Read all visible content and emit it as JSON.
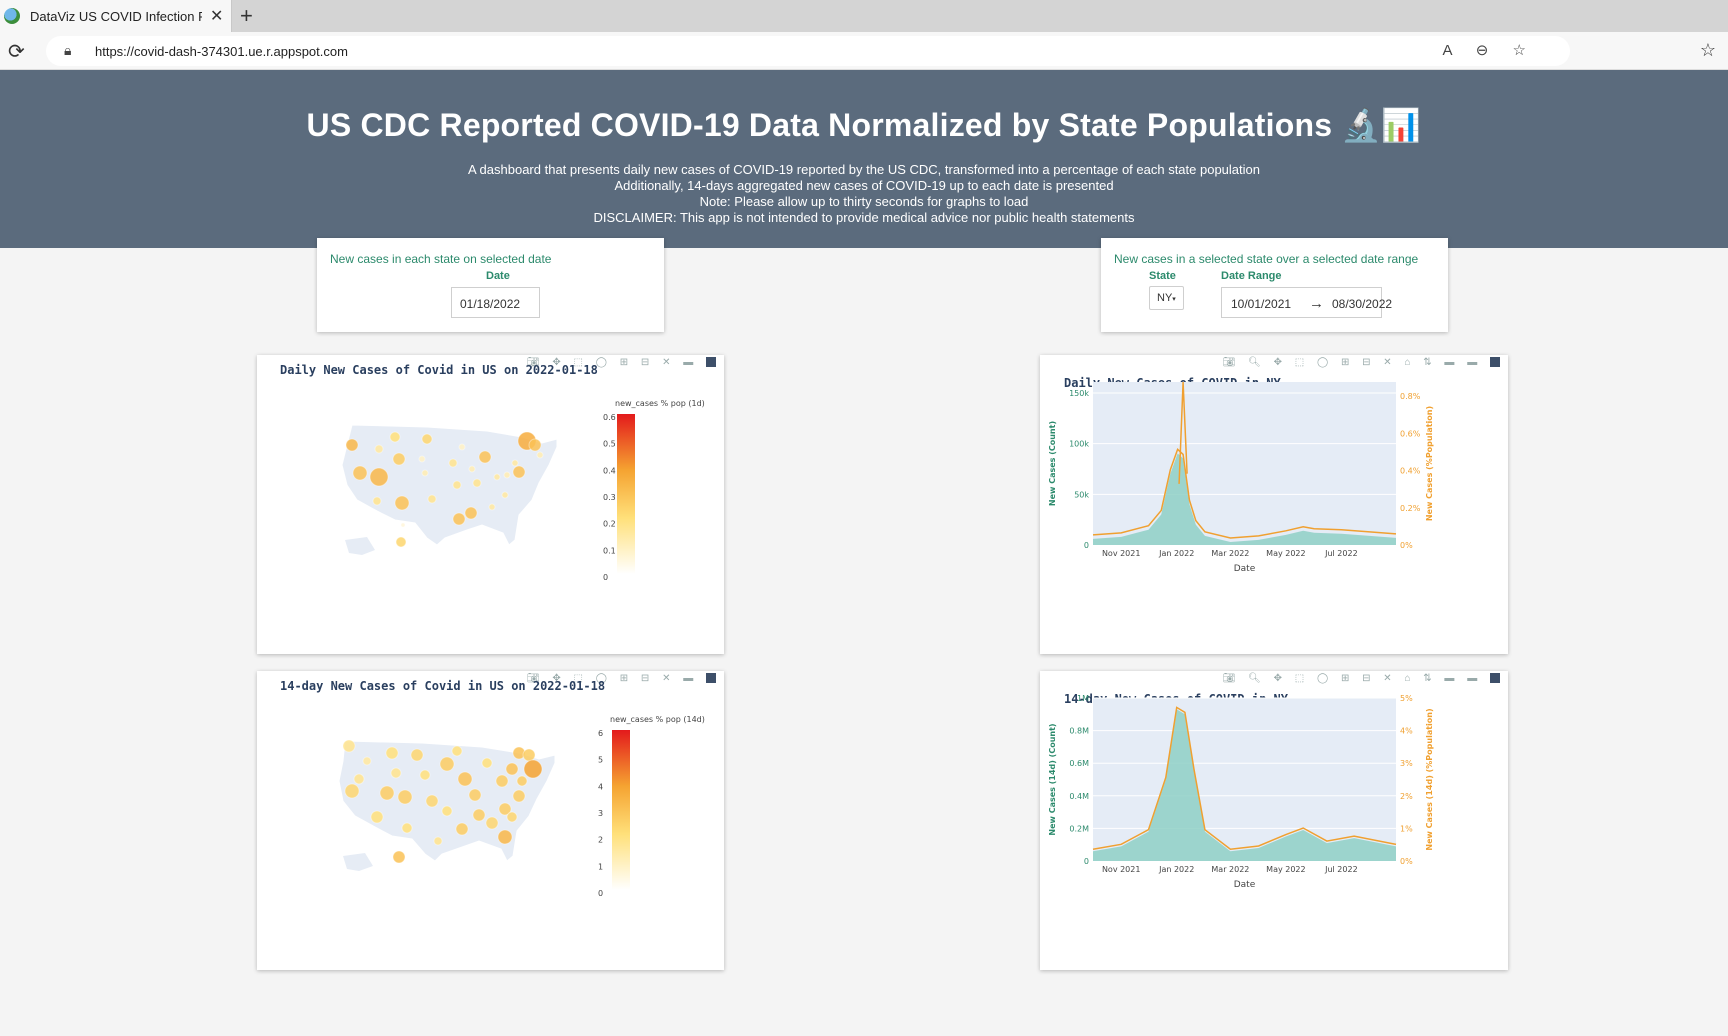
{
  "browser": {
    "tab_title": "DataViz US COVID Infection Rate",
    "url": "https://covid-dash-374301.ue.r.appspot.com",
    "tab_close": "✕",
    "new_tab": "+"
  },
  "header": {
    "title": "US CDC Reported COVID-19 Data Normalized by State Populations 🔬📊",
    "lines": [
      "A dashboard that presents daily new cases of COVID-19 reported by the US CDC, transformed into a percentage of each state population",
      "Additionally, 14-days aggregated new cases of COVID-19 up to each date is presented",
      "Note: Please allow up to thirty seconds for graphs to load",
      "DISCLAIMER: This app is not intended to provide medical advice nor public health statements"
    ]
  },
  "left_controls": {
    "title": "New cases in each state on selected date",
    "date_label": "Date",
    "date_value": "01/18/2022"
  },
  "right_controls": {
    "title": "New cases in a selected state over a selected date range",
    "state_label": "State",
    "state_value": "NY",
    "range_label": "Date Range",
    "start_date": "10/01/2021",
    "arrow": "→",
    "end_date": "08/30/2022"
  },
  "colors": {
    "banner": "#5b6b7d",
    "accent_green": "#2c8a6c",
    "teal_fill": "#8fd0c6",
    "orange_line": "#f0a030"
  },
  "chart_data": [
    {
      "id": "map_daily",
      "type": "scatter",
      "title": "Daily New Cases of Covid in US on 2022-01-18",
      "colorbar_title": "new_cases % pop (1d)",
      "colorbar_ticks": [
        "0.6",
        "0.5",
        "0.4",
        "0.3",
        "0.2",
        "0.1",
        "0"
      ],
      "range": [
        0,
        0.6
      ]
    },
    {
      "id": "map_14d",
      "type": "scatter",
      "title": "14-day New Cases of Covid in US on 2022-01-18",
      "colorbar_title": "new_cases % pop (14d)",
      "colorbar_ticks": [
        "6",
        "5",
        "4",
        "3",
        "2",
        "1",
        "0"
      ],
      "range": [
        0,
        6
      ]
    },
    {
      "id": "ny_daily",
      "type": "area",
      "title": "Daily New Cases of COVID in NY",
      "xlabel": "Date",
      "ylabel_left": "New Cases (Count)",
      "ylabel_right": "New Cases (%Population)",
      "xticks": [
        "Nov 2021",
        "Jan 2022",
        "Mar 2022",
        "May 2022",
        "Jul 2022"
      ],
      "yticks_left": [
        "0",
        "50k",
        "100k",
        "150k"
      ],
      "yticks_right": [
        "0%",
        "0.2%",
        "0.4%",
        "0.6%",
        "0.8%"
      ],
      "ylim_left": [
        0,
        160000
      ],
      "x": [
        "2021-10-01",
        "2021-11-01",
        "2021-12-01",
        "2021-12-15",
        "2021-12-25",
        "2022-01-02",
        "2022-01-08",
        "2022-01-15",
        "2022-01-22",
        "2022-02-01",
        "2022-03-01",
        "2022-04-01",
        "2022-05-01",
        "2022-05-20",
        "2022-06-01",
        "2022-07-01",
        "2022-08-01",
        "2022-08-30"
      ],
      "values": [
        6000,
        8000,
        15000,
        30000,
        70000,
        90000,
        85000,
        40000,
        20000,
        9000,
        3000,
        5000,
        10000,
        14000,
        12000,
        11000,
        9000,
        7000
      ],
      "peak_value": 160000
    },
    {
      "id": "ny_14d",
      "type": "area",
      "title": "14-day New Cases of COVID in NY",
      "xlabel": "Date",
      "ylabel_left": "New Cases (14d) (Count)",
      "ylabel_right": "New Cases (14d) (%Population)",
      "xticks": [
        "Nov 2021",
        "Jan 2022",
        "Mar 2022",
        "May 2022",
        "Jul 2022"
      ],
      "yticks_left": [
        "0",
        "0.2M",
        "0.4M",
        "0.6M",
        "0.8M",
        "1M"
      ],
      "yticks_right": [
        "0%",
        "1%",
        "2%",
        "3%",
        "4%",
        "5%"
      ],
      "ylim_left": [
        0,
        1000000
      ],
      "x": [
        "2021-10-01",
        "2021-11-01",
        "2021-12-01",
        "2021-12-20",
        "2022-01-01",
        "2022-01-10",
        "2022-01-20",
        "2022-02-01",
        "2022-03-01",
        "2022-04-01",
        "2022-05-01",
        "2022-05-20",
        "2022-06-15",
        "2022-07-15",
        "2022-08-30"
      ],
      "values": [
        60000,
        90000,
        180000,
        500000,
        930000,
        900000,
        550000,
        180000,
        60000,
        80000,
        150000,
        190000,
        110000,
        140000,
        90000
      ]
    }
  ]
}
